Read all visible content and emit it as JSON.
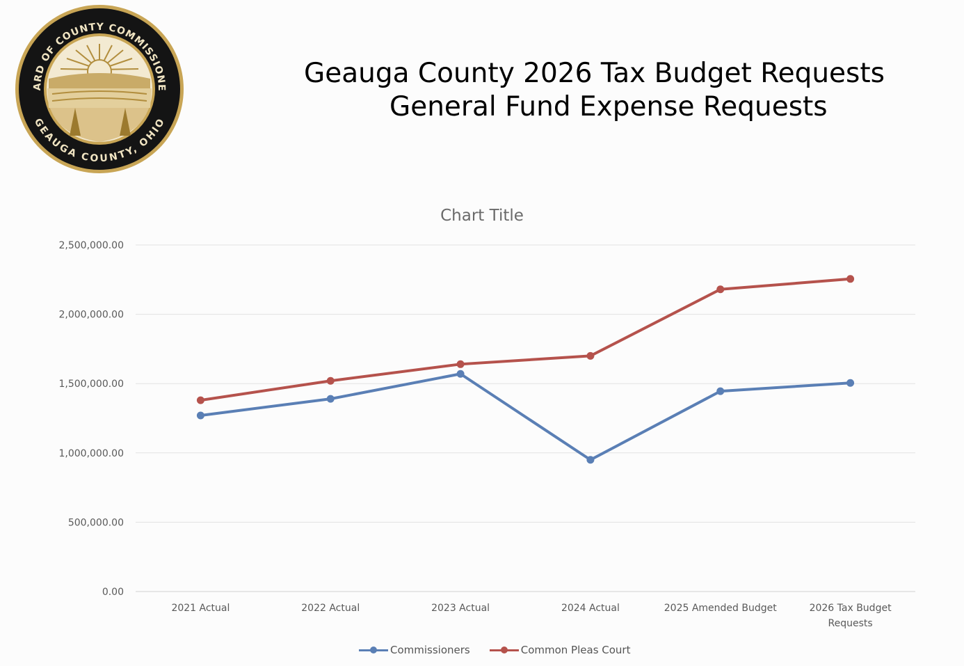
{
  "header": {
    "title_line1": "Geauga County 2026 Tax Budget Requests",
    "title_line2": "General Fund Expense Requests"
  },
  "seal": {
    "top_text": "BOARD OF COUNTY COMMISSIONERS",
    "bottom_text": "GEAUGA COUNTY, OHIO"
  },
  "chart_data": {
    "type": "line",
    "title": "Chart Title",
    "categories": [
      "2021 Actual",
      "2022 Actual",
      "2023 Actual",
      "2024 Actual",
      "2025 Amended Budget",
      "2026 Tax Budget Requests"
    ],
    "category_lines": [
      [
        "2021 Actual"
      ],
      [
        "2022 Actual"
      ],
      [
        "2023 Actual"
      ],
      [
        "2024 Actual"
      ],
      [
        "2025 Amended Budget"
      ],
      [
        "2026 Tax Budget",
        "Requests"
      ]
    ],
    "series": [
      {
        "name": "Commissioners",
        "color": "#5a7fb5",
        "values": [
          1270000,
          1390000,
          1570000,
          950000,
          1445000,
          1505000
        ]
      },
      {
        "name": "Common Pleas Court",
        "color": "#b5524c",
        "values": [
          1380000,
          1520000,
          1640000,
          1700000,
          2180000,
          2255000
        ]
      }
    ],
    "ylim": [
      0,
      2500000
    ],
    "yticks": [
      0,
      500000,
      1000000,
      1500000,
      2000000,
      2500000
    ],
    "ytick_labels": [
      "0.00",
      "500,000.00",
      "1,000,000.00",
      "1,500,000.00",
      "2,000,000.00",
      "2,500,000.00"
    ],
    "grid": true,
    "legend_position": "bottom"
  }
}
